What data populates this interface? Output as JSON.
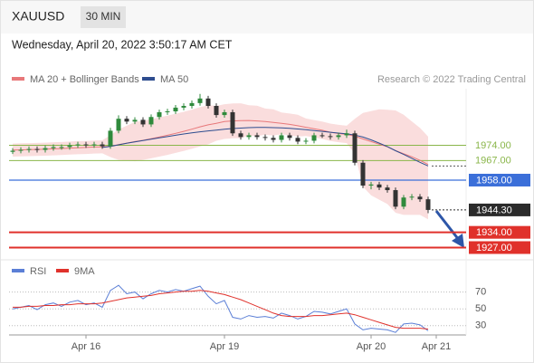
{
  "header": {
    "symbol": "XAUUSD",
    "timeframe": "30 MIN",
    "timestamp": "Wednesday, April 20, 2022 3:50:17 AM CET"
  },
  "chart_data": [
    {
      "type": "candlestick",
      "credit": "Research © 2022 Trading Central",
      "categories": [
        null,
        null,
        null,
        null,
        null,
        null,
        null,
        null,
        null,
        "Apr 16",
        null,
        null,
        null,
        null,
        null,
        null,
        null,
        null,
        null,
        null,
        null,
        null,
        null,
        null,
        null,
        null,
        "Apr 19",
        null,
        null,
        null,
        null,
        null,
        null,
        null,
        null,
        null,
        null,
        null,
        null,
        null,
        null,
        null,
        null,
        null,
        "Apr 20",
        null,
        null,
        null,
        null,
        null,
        null,
        null,
        "Apr 21",
        null,
        null
      ],
      "open": [
        1971.0,
        1971.5,
        1971.9,
        1972.3,
        1971.9,
        1972.7,
        1973.0,
        1973.2,
        1974.0,
        1974.4,
        1974.0,
        1974.4,
        1973.6,
        1980.7,
        1986.2,
        1984.9,
        1985.7,
        1983.6,
        1987.0,
        1989.2,
        1989.6,
        1991.3,
        1992.1,
        1993.4,
        1995.5,
        1992.1,
        1987.9,
        1989.2,
        1979.5,
        1977.8,
        1978.6,
        1977.8,
        1977.4,
        1976.5,
        1978.6,
        1977.4,
        1975.7,
        1976.1,
        1978.6,
        1978.2,
        1977.8,
        1978.6,
        1979.5,
        1966.0,
        1955.5,
        1956.0,
        1954.6,
        1953.4,
        1945.8,
        1950.0,
        1950.4,
        1949.2,
        null,
        null,
        null
      ],
      "high": [
        1972.7,
        1973.1,
        1973.5,
        1973.5,
        1973.9,
        1974.4,
        1974.4,
        1975.2,
        1975.6,
        1975.6,
        1975.6,
        1975.6,
        1982.0,
        1987.8,
        1987.4,
        1986.9,
        1986.9,
        1988.2,
        1990.4,
        1990.8,
        1992.5,
        1993.3,
        1994.6,
        1997.6,
        1996.7,
        1993.3,
        1990.4,
        1990.4,
        1980.7,
        1979.8,
        1979.8,
        1979.0,
        1978.6,
        1979.8,
        1979.8,
        1978.6,
        1977.3,
        1979.8,
        1979.8,
        1979.4,
        1979.8,
        1981.2,
        1980.7,
        1967.2,
        1957.2,
        1957.2,
        1955.8,
        1954.6,
        1951.2,
        1951.6,
        1951.6,
        1950.4,
        null,
        null,
        null
      ],
      "low": [
        1970.0,
        1970.3,
        1970.7,
        1970.7,
        1970.7,
        1971.5,
        1972.0,
        1972.0,
        1972.8,
        1972.8,
        1972.8,
        1972.4,
        1972.4,
        1979.5,
        1983.7,
        1983.7,
        1982.4,
        1982.4,
        1985.8,
        1988.0,
        1988.4,
        1990.1,
        1990.9,
        1992.2,
        1990.9,
        1986.7,
        1986.7,
        1978.3,
        1976.6,
        1976.6,
        1976.6,
        1976.2,
        1975.3,
        1975.3,
        1976.2,
        1974.5,
        1974.5,
        1974.9,
        1977.4,
        1976.6,
        1976.6,
        1977.4,
        1964.8,
        1954.3,
        1953.8,
        1953.4,
        1952.2,
        1944.6,
        1944.6,
        1948.8,
        1948.0,
        1942.8,
        null,
        null,
        null
      ],
      "close": [
        1971.5,
        1971.9,
        1972.3,
        1971.9,
        1972.7,
        1973.2,
        1973.2,
        1974.0,
        1974.4,
        1974.0,
        1974.4,
        1973.6,
        1980.7,
        1986.2,
        1984.9,
        1985.7,
        1983.6,
        1987.0,
        1989.2,
        1989.6,
        1991.3,
        1992.1,
        1993.4,
        1995.5,
        1992.1,
        1987.9,
        1989.2,
        1979.5,
        1977.8,
        1978.6,
        1977.8,
        1977.4,
        1976.5,
        1978.6,
        1977.4,
        1975.7,
        1976.1,
        1978.6,
        1978.2,
        1977.8,
        1978.6,
        1979.5,
        1966.0,
        1955.5,
        1956.0,
        1954.6,
        1953.4,
        1945.8,
        1950.0,
        1950.4,
        1949.2,
        1944.3,
        null,
        null,
        null
      ],
      "up_color": "#2f8a3c",
      "down_color": "#333333",
      "series": [
        {
          "name": "MA 20 + Bollinger Bands",
          "color": "#e8787a",
          "band_color": "#f6c6c6",
          "values": [
            1971.8,
            1971.9,
            1972.0,
            1972.1,
            1972.2,
            1972.4,
            1972.5,
            1972.7,
            1972.9,
            1973.0,
            1973.2,
            1973.3,
            1973.6,
            1974.3,
            1975.0,
            1975.7,
            1976.3,
            1977.0,
            1977.8,
            1978.6,
            1979.5,
            1980.4,
            1981.4,
            1982.5,
            1983.4,
            1984.1,
            1984.9,
            1985.2,
            1985.3,
            1985.4,
            1985.2,
            1984.9,
            1984.5,
            1984.1,
            1983.6,
            1983.0,
            1982.3,
            1981.6,
            1980.9,
            1980.0,
            1979.4,
            1979.0,
            1978.2,
            1976.9,
            1975.7,
            1974.5,
            1973.3,
            1971.6,
            1970.1,
            1968.7,
            1967.1,
            1965.2,
            null,
            null,
            null
          ],
          "upper": [
            1974.8,
            1974.9,
            1975.0,
            1975.1,
            1975.2,
            1975.4,
            1975.5,
            1975.7,
            1975.9,
            1976.0,
            1976.2,
            1976.3,
            1978.6,
            1981.3,
            1983.0,
            1984.7,
            1985.3,
            1986.0,
            1986.8,
            1987.6,
            1988.5,
            1989.4,
            1990.4,
            1991.5,
            1992.4,
            1992.1,
            1992.9,
            1993.2,
            1993.3,
            1992.4,
            1992.2,
            1990.9,
            1990.5,
            1989.1,
            1988.6,
            1988.0,
            1986.3,
            1985.6,
            1984.9,
            1984.0,
            1983.4,
            1983.0,
            1986.2,
            1988.9,
            1989.7,
            1990.5,
            1990.3,
            1990.0,
            1988.0,
            1985.0,
            1982.0,
            1978.0,
            null,
            null,
            null
          ],
          "lower": [
            1968.8,
            1968.9,
            1969.0,
            1969.1,
            1969.2,
            1969.4,
            1969.5,
            1969.7,
            1969.9,
            1970.0,
            1970.2,
            1970.3,
            1968.6,
            1967.3,
            1967.0,
            1966.7,
            1967.3,
            1968.0,
            1968.8,
            1969.6,
            1970.5,
            1971.4,
            1972.4,
            1973.5,
            1974.4,
            1976.1,
            1976.9,
            1977.2,
            1977.3,
            1978.4,
            1978.2,
            1978.9,
            1978.5,
            1979.1,
            1978.6,
            1978.0,
            1978.3,
            1977.6,
            1976.9,
            1976.0,
            1975.4,
            1975.0,
            1970.2,
            1955.0,
            1951.0,
            1949.0,
            1947.0,
            1943.0,
            1942.0,
            1942.0,
            1942.0,
            1940.0,
            null,
            null,
            null
          ]
        },
        {
          "name": "MA 50",
          "color": "#2e4d8f",
          "values": [
            null,
            null,
            null,
            null,
            null,
            null,
            null,
            null,
            null,
            null,
            null,
            1973.0,
            1973.5,
            1974.2,
            1974.9,
            1975.6,
            1976.2,
            1976.8,
            1977.4,
            1978.0,
            1978.6,
            1979.2,
            1979.7,
            1980.2,
            1980.6,
            1981.0,
            1981.4,
            1981.7,
            1981.9,
            1982.1,
            1982.2,
            1982.2,
            1982.1,
            1982.0,
            1981.8,
            1981.5,
            1981.2,
            1980.8,
            1980.4,
            1980.0,
            1979.6,
            1979.3,
            1978.7,
            1977.8,
            1976.5,
            1975.0,
            1973.4,
            1971.5,
            1969.8,
            1968.0,
            1966.2,
            1964.5,
            null,
            null,
            null
          ]
        }
      ],
      "levels": [
        {
          "value": 1974,
          "label": "1974.00",
          "color": "#8ab64a",
          "boxed": false,
          "dashed": false,
          "width": 1
        },
        {
          "value": 1967,
          "label": "1967.00",
          "color": "#8ab64a",
          "boxed": false,
          "dashed": false,
          "width": 1
        },
        {
          "value": 1958,
          "label": "1958.00",
          "color": "#3b6fd9",
          "boxed": true,
          "dashed": false,
          "width": 1.2
        },
        {
          "value": 1944.3,
          "label": "1944.30",
          "color": "#2b2b2b",
          "boxed": true,
          "dashed": true,
          "width": 1
        },
        {
          "value": 1934,
          "label": "1934.00",
          "color": "#e0312b",
          "boxed": true,
          "dashed": false,
          "width": 2
        },
        {
          "value": 1927,
          "label": "1927.00",
          "color": "#e0312b",
          "boxed": true,
          "dashed": false,
          "width": 2
        }
      ],
      "ylim": [
        1921.8,
        2000
      ]
    },
    {
      "type": "line",
      "series": [
        {
          "name": "RSI",
          "color": "#5b7fd6",
          "values": [
            50,
            52,
            54,
            49,
            55,
            57,
            53,
            58,
            60,
            55,
            57,
            52,
            72,
            78,
            68,
            70,
            62,
            68,
            72,
            70,
            73,
            71,
            74,
            77,
            65,
            56,
            60,
            40,
            38,
            42,
            40,
            41,
            39,
            45,
            42,
            38,
            41,
            47,
            46,
            44,
            47,
            50,
            32,
            25,
            27,
            26,
            25,
            22,
            32,
            33,
            31,
            24,
            null,
            null,
            null
          ]
        },
        {
          "name": "9MA",
          "color": "#e0322c",
          "values": [
            52,
            52,
            53,
            53,
            54,
            54,
            55,
            55,
            56,
            56,
            56,
            57,
            59,
            61,
            63,
            64,
            65,
            66,
            68,
            69,
            70,
            71,
            71,
            72,
            71,
            69,
            67,
            64,
            61,
            57,
            53,
            49,
            45,
            42,
            41,
            41,
            41,
            42,
            42,
            43,
            44,
            45,
            43,
            40,
            37,
            34,
            31,
            28,
            27,
            27,
            27,
            26,
            null,
            null,
            null
          ]
        }
      ],
      "ylim": [
        19,
        89
      ],
      "yticks": [
        70,
        50,
        30
      ],
      "grid": true
    }
  ]
}
